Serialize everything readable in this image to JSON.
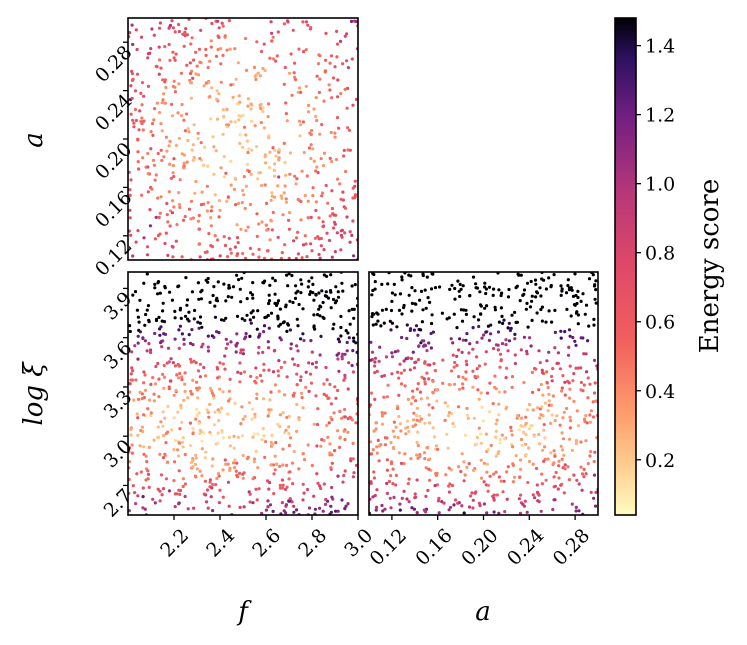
{
  "chart_data": [
    {
      "panel": "top-left",
      "type": "scatter",
      "xlabel": "",
      "ylabel": "a",
      "xlim": [
        2.0,
        3.0
      ],
      "ylim": [
        0.1,
        0.3
      ],
      "xticks": [],
      "yticks": [
        "0.12",
        "0.16",
        "0.20",
        "0.24",
        "0.28"
      ],
      "n_points": 700,
      "color_by": "Energy score"
    },
    {
      "panel": "bottom-left",
      "type": "scatter",
      "xlabel": "f",
      "ylabel": "log ξ",
      "xlim": [
        2.0,
        3.0
      ],
      "ylim": [
        2.52,
        4.0
      ],
      "xticks": [
        "2.2",
        "2.4",
        "2.6",
        "2.8",
        "3.0"
      ],
      "yticks": [
        "2.7",
        "3.0",
        "3.3",
        "3.6",
        "3.9"
      ],
      "n_points": 900,
      "color_by": "Energy score"
    },
    {
      "panel": "bottom-right",
      "type": "scatter",
      "xlabel": "a",
      "ylabel": "",
      "xlim": [
        0.1,
        0.3
      ],
      "ylim": [
        2.52,
        4.0
      ],
      "xticks": [
        "0.12",
        "0.16",
        "0.20",
        "0.24",
        "0.28"
      ],
      "yticks": [],
      "n_points": 900,
      "color_by": "Energy score"
    }
  ],
  "colorbar": {
    "label": "Energy score",
    "colormap": "magma_r",
    "range": [
      0.04,
      1.48
    ],
    "ticks": [
      "0.2",
      "0.4",
      "0.6",
      "0.8",
      "1.0",
      "1.2",
      "1.4"
    ],
    "tick_values": [
      0.2,
      0.4,
      0.6,
      0.8,
      1.0,
      1.2,
      1.4
    ]
  },
  "axis_labels": {
    "top_left_y": "a",
    "bottom_left_y": "log ξ",
    "bottom_left_x": "f",
    "bottom_right_x": "a"
  }
}
